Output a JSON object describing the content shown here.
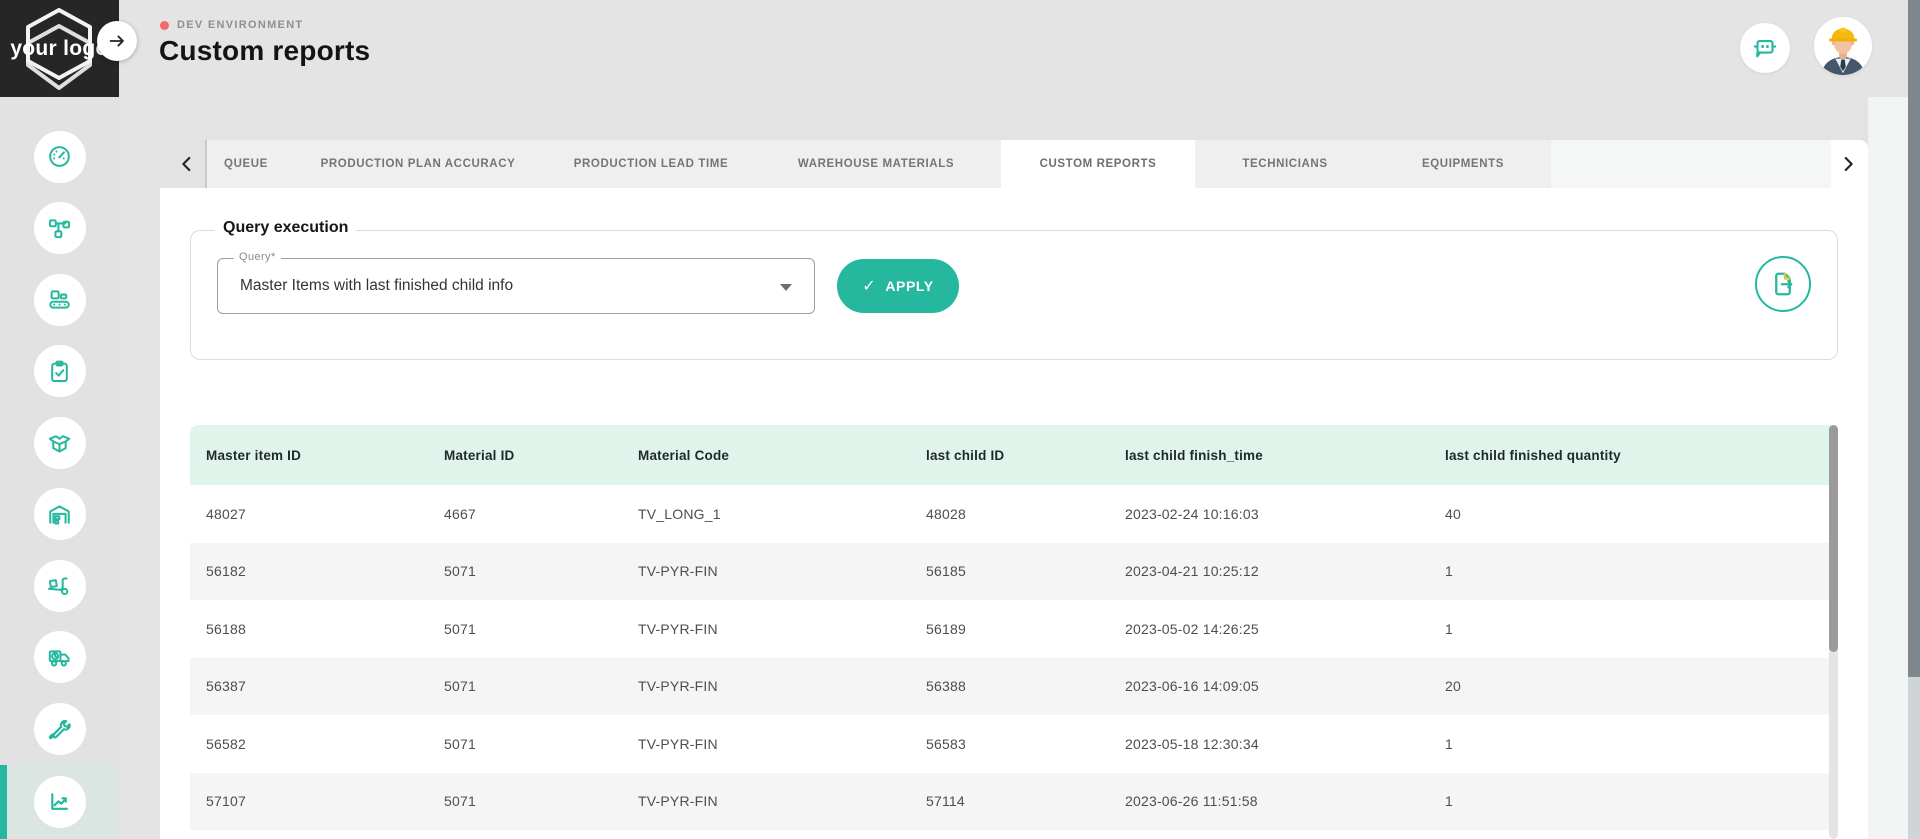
{
  "colors": {
    "teal": "#26b89e",
    "mint_header": "#e1f4ec",
    "dark_logo": "#262626",
    "red_dot": "#f26a6a"
  },
  "header": {
    "logo_text": "your logo",
    "env_label": "DEV ENVIRONMENT",
    "title": "Custom reports"
  },
  "sidebar": {
    "items": [
      {
        "icon": "gauge-icon",
        "active": false
      },
      {
        "icon": "workflow-icon",
        "active": false
      },
      {
        "icon": "conveyor-icon",
        "active": false
      },
      {
        "icon": "clipboard-check-icon",
        "active": false
      },
      {
        "icon": "open-box-icon",
        "active": false
      },
      {
        "icon": "warehouse-icon",
        "active": false
      },
      {
        "icon": "pallet-truck-icon",
        "active": false
      },
      {
        "icon": "delivery-truck-icon",
        "active": false
      },
      {
        "icon": "tools-icon",
        "active": false
      },
      {
        "icon": "analytics-icon",
        "active": true
      }
    ]
  },
  "tabs": {
    "items": [
      {
        "label": "QUEUE",
        "active": false
      },
      {
        "label": "PRODUCTION PLAN ACCURACY",
        "active": false
      },
      {
        "label": "PRODUCTION LEAD TIME",
        "active": false
      },
      {
        "label": "WAREHOUSE MATERIALS",
        "active": false
      },
      {
        "label": "CUSTOM REPORTS",
        "active": true
      },
      {
        "label": "TECHNICIANS",
        "active": false
      },
      {
        "label": "EQUIPMENTS",
        "active": false
      }
    ]
  },
  "query": {
    "section_title": "Query execution",
    "field_label": "Query*",
    "selected_value": "Master Items with last finished child info",
    "apply_check": "✓",
    "apply_label": "APPLY"
  },
  "table": {
    "columns": [
      "Master item ID",
      "Material ID",
      "Material Code",
      "last child ID",
      "last child finish_time",
      "last child finished quantity"
    ],
    "rows": [
      [
        "48027",
        "4667",
        "TV_LONG_1",
        "48028",
        "2023-02-24 10:16:03",
        "40"
      ],
      [
        "56182",
        "5071",
        "TV-PYR-FIN",
        "56185",
        "2023-04-21 10:25:12",
        "1"
      ],
      [
        "56188",
        "5071",
        "TV-PYR-FIN",
        "56189",
        "2023-05-02 14:26:25",
        "1"
      ],
      [
        "56387",
        "5071",
        "TV-PYR-FIN",
        "56388",
        "2023-06-16 14:09:05",
        "20"
      ],
      [
        "56582",
        "5071",
        "TV-PYR-FIN",
        "56583",
        "2023-05-18 12:30:34",
        "1"
      ],
      [
        "57107",
        "5071",
        "TV-PYR-FIN",
        "57114",
        "2023-06-26 11:51:58",
        "1"
      ]
    ]
  }
}
